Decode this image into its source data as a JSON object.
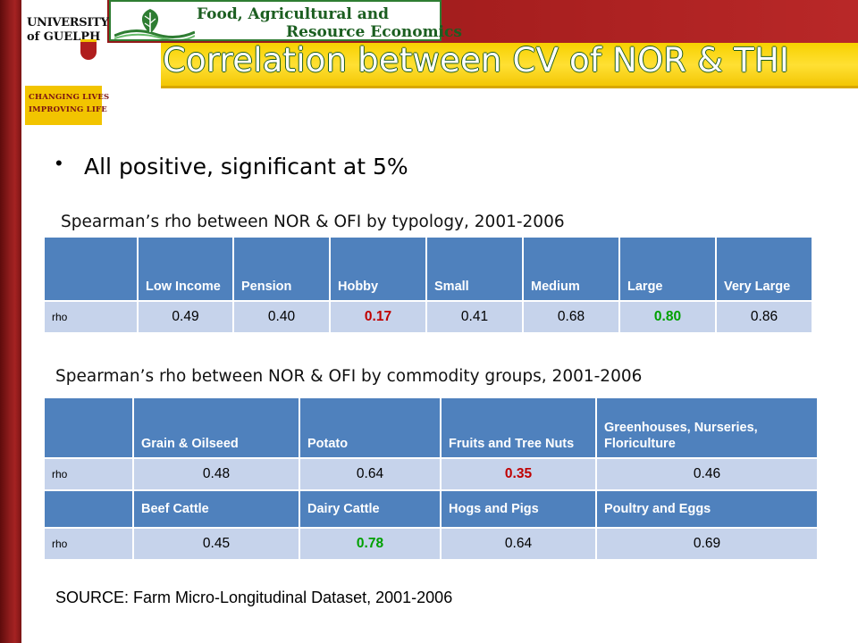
{
  "header": {
    "university_line1": "UNIVERSITY",
    "university_line2": "of GUELPH",
    "tagline_line1": "CHANGING LIVES",
    "tagline_line2": "IMPROVING LIFE",
    "dept_line1": "Food, Agricultural and",
    "dept_line2": "Resource Economics"
  },
  "title": "Correlation between CV of NOR & THI",
  "bullet": "All positive, significant at 5%",
  "table1": {
    "caption": "Spearman’s rho between NOR & OFI by typology, 2001-2006",
    "headers": [
      "Low Income",
      "Pension",
      "Hobby",
      "Small",
      "Medium",
      "Large",
      "Very Large"
    ],
    "row_label": "rho",
    "values": [
      "0.49",
      "0.40",
      "0.17",
      "0.41",
      "0.68",
      "0.80",
      "0.86"
    ]
  },
  "table2": {
    "caption": "Spearman’s rho between NOR & OFI by commodity groups, 2001-2006",
    "headers_a": [
      "Grain & Oilseed",
      "Potato",
      "Fruits and Tree Nuts",
      "Greenhouses, Nurseries, Floriculture"
    ],
    "row_label_a": "rho",
    "values_a": [
      "0.48",
      "0.64",
      "0.35",
      "0.46"
    ],
    "headers_b": [
      "Beef Cattle",
      "Dairy Cattle",
      "Hogs and Pigs",
      "Poultry and Eggs"
    ],
    "row_label_b": "rho",
    "values_b": [
      "0.45",
      "0.78",
      "0.64",
      "0.69"
    ]
  },
  "source": "SOURCE: Farm Micro-Longitudinal Dataset, 2001-2006",
  "colors": {
    "header_fill": "#4f81bd",
    "cell_fill": "#c6d3eb",
    "highlight_red": "#c00000",
    "highlight_green": "#00a000",
    "banner_maroon": "#a81f1f",
    "banner_gold": "#f7d100"
  }
}
